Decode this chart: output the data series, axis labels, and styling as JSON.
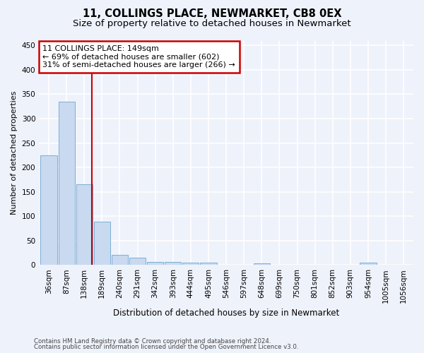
{
  "title": "11, COLLINGS PLACE, NEWMARKET, CB8 0EX",
  "subtitle": "Size of property relative to detached houses in Newmarket",
  "xlabel": "Distribution of detached houses by size in Newmarket",
  "ylabel": "Number of detached properties",
  "bar_labels": [
    "36sqm",
    "87sqm",
    "138sqm",
    "189sqm",
    "240sqm",
    "291sqm",
    "342sqm",
    "393sqm",
    "444sqm",
    "495sqm",
    "546sqm",
    "597sqm",
    "648sqm",
    "699sqm",
    "750sqm",
    "801sqm",
    "852sqm",
    "903sqm",
    "954sqm",
    "1005sqm",
    "1056sqm"
  ],
  "bar_values": [
    225,
    335,
    165,
    88,
    20,
    15,
    6,
    6,
    5,
    4,
    0,
    0,
    3,
    0,
    0,
    0,
    0,
    0,
    4,
    0,
    0
  ],
  "bar_color": "#c9d9f0",
  "bar_edge_color": "#7bafd4",
  "property_line_x": 2.45,
  "annotation_line1": "11 COLLINGS PLACE: 149sqm",
  "annotation_line2": "← 69% of detached houses are smaller (602)",
  "annotation_line3": "31% of semi-detached houses are larger (266) →",
  "annotation_box_color": "#ffffff",
  "annotation_box_edge": "#cc0000",
  "property_line_color": "#cc0000",
  "ylim": [
    0,
    460
  ],
  "yticks": [
    0,
    50,
    100,
    150,
    200,
    250,
    300,
    350,
    400,
    450
  ],
  "footnote1": "Contains HM Land Registry data © Crown copyright and database right 2024.",
  "footnote2": "Contains public sector information licensed under the Open Government Licence v3.0.",
  "background_color": "#eef2fb",
  "grid_color": "#ffffff",
  "title_fontsize": 10.5,
  "subtitle_fontsize": 9.5,
  "annotation_fontsize": 8.0
}
